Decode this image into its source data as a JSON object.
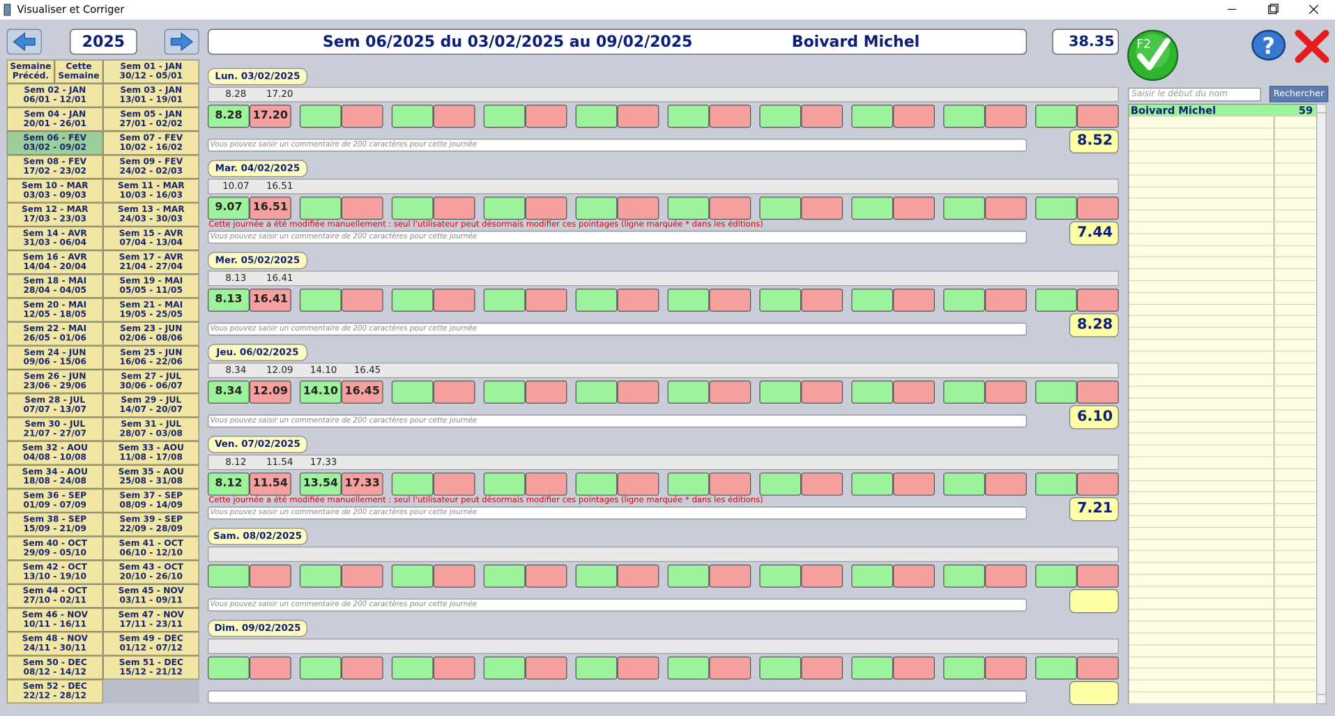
{
  "window": {
    "title": "Visualiser et Corriger"
  },
  "header": {
    "year": "2025",
    "week_title": "Sem 06/2025 du 03/02/2025 au 09/02/2025",
    "employee": "Boivard Michel",
    "week_total": "38.35",
    "validate_label": "F2",
    "help_label": "?"
  },
  "week_nav": {
    "previous": "Semaine Précéd.",
    "current": "Cette Semaine",
    "weeks": [
      {
        "label": "Sem 01 - JAN",
        "dates": "30/12 - 05/01"
      },
      {
        "label": "Sem 02 - JAN",
        "dates": "06/01 - 12/01"
      },
      {
        "label": "Sem 03 - JAN",
        "dates": "13/01 - 19/01"
      },
      {
        "label": "Sem 04 - JAN",
        "dates": "20/01 - 26/01"
      },
      {
        "label": "Sem 05 - JAN",
        "dates": "27/01 - 02/02"
      },
      {
        "label": "Sem 06 - FEV",
        "dates": "03/02 - 09/02",
        "selected": true
      },
      {
        "label": "Sem 07 - FEV",
        "dates": "10/02 - 16/02"
      },
      {
        "label": "Sem 08 - FEV",
        "dates": "17/02 - 23/02"
      },
      {
        "label": "Sem 09 - FEV",
        "dates": "24/02 - 02/03"
      },
      {
        "label": "Sem 10 - MAR",
        "dates": "03/03 - 09/03"
      },
      {
        "label": "Sem 11 - MAR",
        "dates": "10/03 - 16/03"
      },
      {
        "label": "Sem 12 - MAR",
        "dates": "17/03 - 23/03"
      },
      {
        "label": "Sem 13 - MAR",
        "dates": "24/03 - 30/03"
      },
      {
        "label": "Sem 14 - AVR",
        "dates": "31/03 - 06/04"
      },
      {
        "label": "Sem 15 - AVR",
        "dates": "07/04 - 13/04"
      },
      {
        "label": "Sem 16 - AVR",
        "dates": "14/04 - 20/04"
      },
      {
        "label": "Sem 17 - AVR",
        "dates": "21/04 - 27/04"
      },
      {
        "label": "Sem 18 - MAI",
        "dates": "28/04 - 04/05"
      },
      {
        "label": "Sem 19 - MAI",
        "dates": "05/05 - 11/05"
      },
      {
        "label": "Sem 20 - MAI",
        "dates": "12/05 - 18/05"
      },
      {
        "label": "Sem 21 - MAI",
        "dates": "19/05 - 25/05"
      },
      {
        "label": "Sem 22 - MAI",
        "dates": "26/05 - 01/06"
      },
      {
        "label": "Sem 23 - JUN",
        "dates": "02/06 - 08/06"
      },
      {
        "label": "Sem 24 - JUN",
        "dates": "09/06 - 15/06"
      },
      {
        "label": "Sem 25 - JUN",
        "dates": "16/06 - 22/06"
      },
      {
        "label": "Sem 26 - JUN",
        "dates": "23/06 - 29/06"
      },
      {
        "label": "Sem 27 - JUL",
        "dates": "30/06 - 06/07"
      },
      {
        "label": "Sem 28 - JUL",
        "dates": "07/07 - 13/07"
      },
      {
        "label": "Sem 29 - JUL",
        "dates": "14/07 - 20/07"
      },
      {
        "label": "Sem 30 - JUL",
        "dates": "21/07 - 27/07"
      },
      {
        "label": "Sem 31 - JUL",
        "dates": "28/07 - 03/08"
      },
      {
        "label": "Sem 32 - AOU",
        "dates": "04/08 - 10/08"
      },
      {
        "label": "Sem 33 - AOU",
        "dates": "11/08 - 17/08"
      },
      {
        "label": "Sem 34 - AOU",
        "dates": "18/08 - 24/08"
      },
      {
        "label": "Sem 35 - AOU",
        "dates": "25/08 - 31/08"
      },
      {
        "label": "Sem 36 - SEP",
        "dates": "01/09 - 07/09"
      },
      {
        "label": "Sem 37 - SEP",
        "dates": "08/09 - 14/09"
      },
      {
        "label": "Sem 38 - SEP",
        "dates": "15/09 - 21/09"
      },
      {
        "label": "Sem 39 - SEP",
        "dates": "22/09 - 28/09"
      },
      {
        "label": "Sem 40 - OCT",
        "dates": "29/09 - 05/10"
      },
      {
        "label": "Sem 41 - OCT",
        "dates": "06/10 - 12/10"
      },
      {
        "label": "Sem 42 - OCT",
        "dates": "13/10 - 19/10"
      },
      {
        "label": "Sem 43 - OCT",
        "dates": "20/10 - 26/10"
      },
      {
        "label": "Sem 44 - OCT",
        "dates": "27/10 - 02/11"
      },
      {
        "label": "Sem 45 - NOV",
        "dates": "03/11 - 09/11"
      },
      {
        "label": "Sem 46 - NOV",
        "dates": "10/11 - 16/11"
      },
      {
        "label": "Sem 47 - NOV",
        "dates": "17/11 - 23/11"
      },
      {
        "label": "Sem 48 - NOV",
        "dates": "24/11 - 30/11"
      },
      {
        "label": "Sem 49 - DEC",
        "dates": "01/12 - 07/12"
      },
      {
        "label": "Sem 50 - DEC",
        "dates": "08/12 - 14/12"
      },
      {
        "label": "Sem 51 - DEC",
        "dates": "15/12 - 21/12"
      },
      {
        "label": "Sem 52 - DEC",
        "dates": "22/12 - 28/12"
      }
    ]
  },
  "days": [
    {
      "label": "Lun. 03/02/2025",
      "raw": [
        "8.28",
        "17.20"
      ],
      "punches": [
        "8.28",
        "17.20"
      ],
      "comment_placeholder": "Vous pouvez saisir un commentaire de 200 caractères pour cette journée",
      "total": "8.52"
    },
    {
      "label": "Mar. 04/02/2025",
      "raw": [
        "10.07",
        "16.51"
      ],
      "punches": [
        "9.07",
        "16.51"
      ],
      "warning": "Cette journée a été modifiée manuellement : seul l'utilisateur peut désormais modifier ces pointages (ligne marquée * dans les éditions)",
      "comment_placeholder": "Vous pouvez saisir un commentaire de 200 caractères pour cette journée",
      "total": "7.44"
    },
    {
      "label": "Mer. 05/02/2025",
      "raw": [
        "8.13",
        "16.41"
      ],
      "punches": [
        "8.13",
        "16.41"
      ],
      "comment_placeholder": "Vous pouvez saisir un commentaire de 200 caractères pour cette journée",
      "total": "8.28"
    },
    {
      "label": "Jeu. 06/02/2025",
      "raw": [
        "8.34",
        "12.09",
        "14.10",
        "16.45"
      ],
      "punches": [
        "8.34",
        "12.09",
        "14.10",
        "16.45"
      ],
      "comment_placeholder": "Vous pouvez saisir un commentaire de 200 caractères pour cette journée",
      "total": "6.10"
    },
    {
      "label": "Ven. 07/02/2025",
      "raw": [
        "8.12",
        "11.54",
        "17.33"
      ],
      "punches": [
        "8.12",
        "11.54",
        "13.54",
        "17.33"
      ],
      "warning": "Cette journée a été modifiée manuellement : seul l'utilisateur peut désormais modifier ces pointages (ligne marquée * dans les éditions)",
      "comment_placeholder": "Vous pouvez saisir un commentaire de 200 caractères pour cette journée",
      "total": "7.21"
    },
    {
      "label": "Sam. 08/02/2025",
      "raw": [],
      "punches": [],
      "comment_placeholder": "Vous pouvez saisir un commentaire de 200 caractères pour cette journée"
    },
    {
      "label": "Dim. 09/02/2025",
      "raw": [],
      "punches": []
    }
  ],
  "search": {
    "placeholder": "Saisir le début du nom",
    "button": "Rechercher",
    "results": [
      {
        "name": "Boivard Michel",
        "value": "59"
      }
    ]
  }
}
